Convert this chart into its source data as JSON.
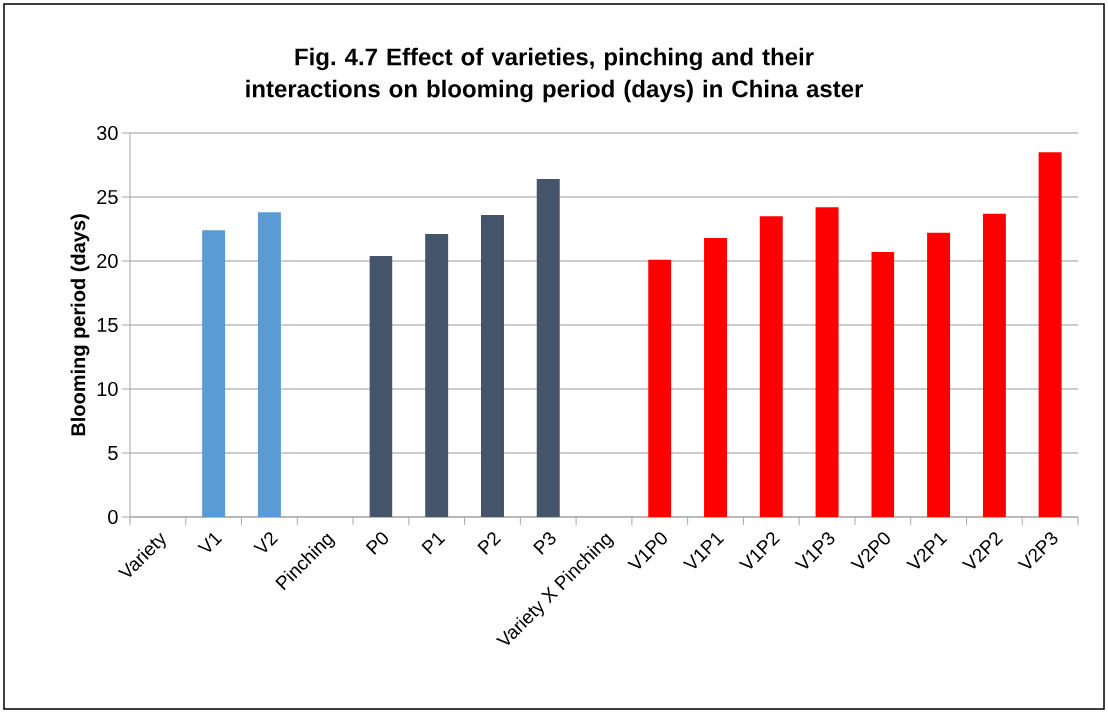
{
  "chart_data": {
    "type": "bar",
    "title": "Fig. 4.7 Effect of varieties, pinching and their interactions on blooming period (days) in China aster",
    "ylabel": "Blooming period (days)",
    "categories": [
      "Variety",
      "V1",
      "V2",
      "Pinching",
      "P0",
      "P1",
      "P2",
      "P3",
      "Variety X Pinching",
      "V1P0",
      "V1P1",
      "V1P2",
      "V1P3",
      "V2P0",
      "V2P1",
      "V2P2",
      "V2P3"
    ],
    "values": [
      null,
      22.4,
      23.8,
      null,
      20.4,
      22.1,
      23.6,
      26.4,
      null,
      20.1,
      21.8,
      23.5,
      24.2,
      20.7,
      22.2,
      23.7,
      28.5
    ],
    "colors": [
      "#5b9bd5",
      "#5b9bd5",
      "#5b9bd5",
      "#44546a",
      "#44546a",
      "#44546a",
      "#44546a",
      "#44546a",
      "#ff0000",
      "#ff0000",
      "#ff0000",
      "#ff0000",
      "#ff0000",
      "#ff0000",
      "#ff0000",
      "#ff0000",
      "#ff0000"
    ],
    "ylim": [
      0,
      30
    ],
    "yticks": [
      0,
      5,
      10,
      15,
      20,
      25,
      30
    ],
    "grid": "y"
  }
}
